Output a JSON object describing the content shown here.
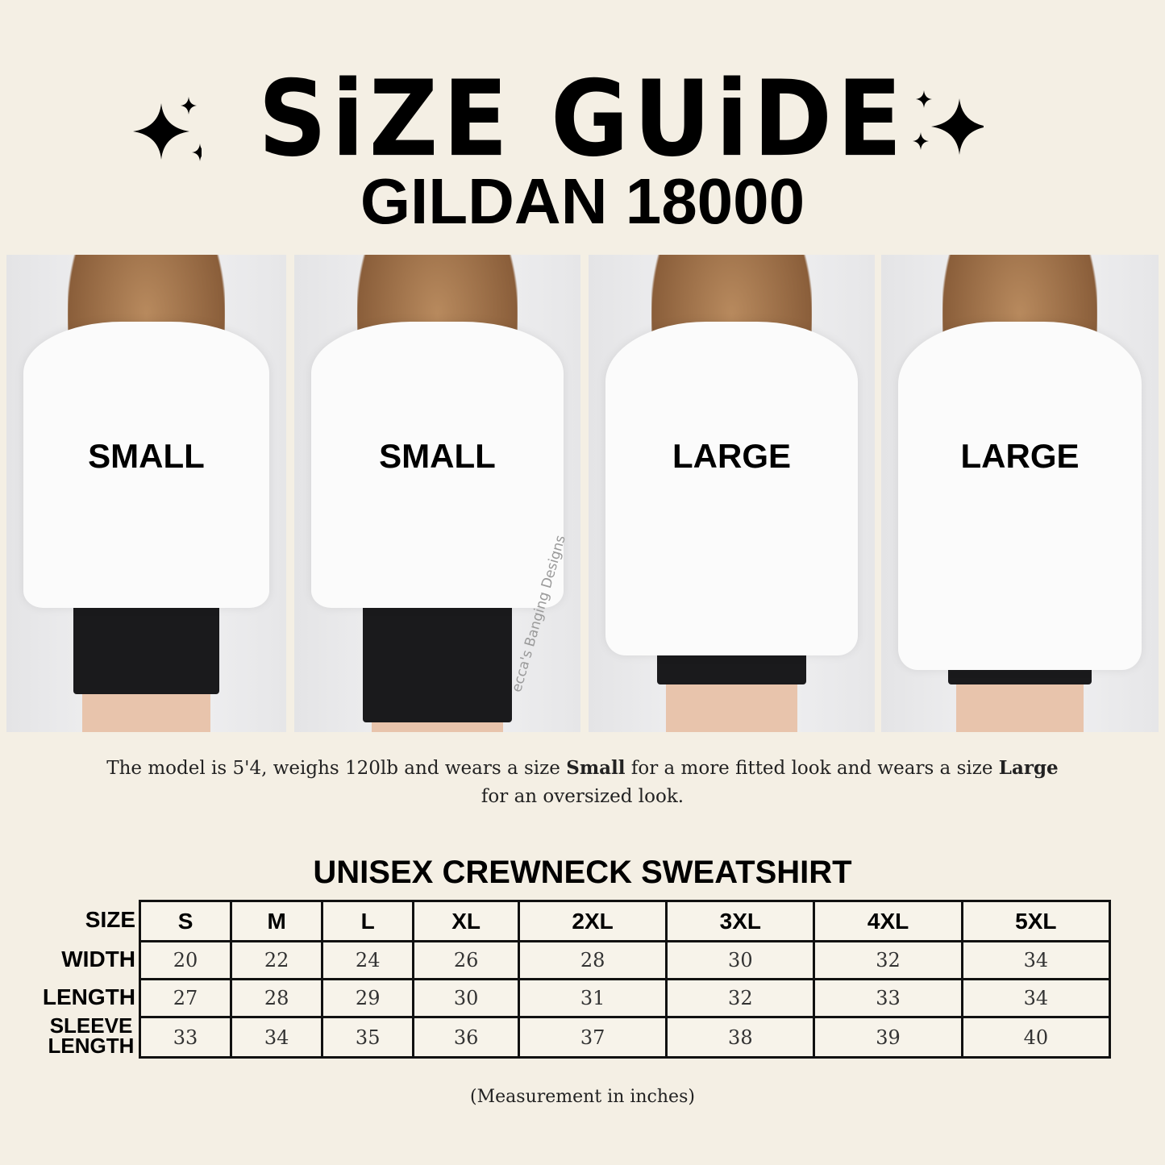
{
  "header": {
    "title": "SiZE GUiDE",
    "subtitle": "GILDAN 18000"
  },
  "photos": [
    {
      "label": "SMALL",
      "view": "front"
    },
    {
      "label": "SMALL",
      "view": "back"
    },
    {
      "label": "LARGE",
      "view": "front"
    },
    {
      "label": "LARGE",
      "view": "back"
    }
  ],
  "watermark": "ecca's Banging Designs",
  "description": {
    "p1": "The model is 5'4, weighs 120lb and wears a size ",
    "b1": "Small",
    "p2": " for a more fitted look and wears a size ",
    "b2": "Large",
    "p3": " for an oversized look."
  },
  "table": {
    "title": "UNISEX CREWNECK SWEATSHIRT",
    "row_labels": [
      "SIZE",
      "WIDTH",
      "LENGTH",
      "SLEEVE LENGTH"
    ],
    "sizes": [
      "S",
      "M",
      "L",
      "XL",
      "2XL",
      "3XL",
      "4XL",
      "5XL"
    ],
    "width": [
      "20",
      "22",
      "24",
      "26",
      "28",
      "30",
      "32",
      "34"
    ],
    "length": [
      "27",
      "28",
      "29",
      "30",
      "31",
      "32",
      "33",
      "34"
    ],
    "sleeve_length": [
      "33",
      "34",
      "35",
      "36",
      "37",
      "38",
      "39",
      "40"
    ]
  },
  "note": "(Measurement in inches)",
  "colors": {
    "background": "#f4efe4",
    "text": "#000000"
  }
}
